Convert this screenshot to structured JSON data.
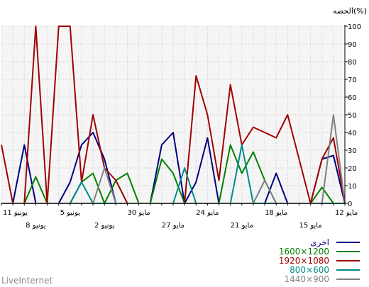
{
  "chart_data": {
    "type": "line",
    "ylabel": "الحصه(%)",
    "ylim": [
      0,
      100
    ],
    "yticks": [
      0,
      10,
      20,
      30,
      40,
      50,
      60,
      70,
      80,
      90,
      100
    ],
    "x": [
      "12 مايو",
      "13 مايو",
      "14 مايو",
      "15 مايو",
      "16 مايو",
      "17 مايو",
      "18 مايو",
      "19 مايو",
      "20 مايو",
      "21 مايو",
      "22 مايو",
      "23 مايو",
      "24 مايو",
      "25 مايو",
      "26 مايو",
      "27 مايو",
      "28 مايو",
      "29 مايو",
      "30 مايو",
      "31 مايو",
      "1 يونيو",
      "2 يونيو",
      "3 يونيو",
      "4 يونيو",
      "5 يونيو",
      "6 يونيو",
      "7 يونيو",
      "8 يونيو",
      "9 يونيو",
      "10 يونيو",
      "11 يونيو"
    ],
    "x_ticks_top": [
      {
        "index": 0,
        "label": "12 مايو"
      },
      {
        "index": 6,
        "label": "18 مايو"
      },
      {
        "index": 12,
        "label": "24 مايو"
      },
      {
        "index": 18,
        "label": "30 مايو"
      },
      {
        "index": 24,
        "label": "5 يونيو"
      },
      {
        "index": 30,
        "label": "11 يونيو"
      }
    ],
    "x_ticks_bottom": [
      {
        "index": 3,
        "label": "15 مايو"
      },
      {
        "index": 9,
        "label": "21 مايو"
      },
      {
        "index": 15,
        "label": "27 مايو"
      },
      {
        "index": 21,
        "label": "2 يونيو"
      },
      {
        "index": 27,
        "label": "8 يونيو"
      }
    ],
    "series": [
      {
        "name": "اخرى",
        "color": "#000080",
        "values": [
          0,
          27,
          25,
          0,
          0,
          0,
          17,
          0,
          0,
          0,
          0,
          0,
          37,
          12,
          0,
          40,
          33,
          0,
          0,
          0,
          0,
          25,
          40,
          33,
          12,
          0,
          0,
          0,
          33,
          0,
          0
        ]
      },
      {
        "name": "1600×1200",
        "color": "#008000",
        "values": [
          0,
          0,
          9,
          0,
          0,
          0,
          0,
          13,
          29,
          17,
          33,
          0,
          0,
          0,
          0,
          17,
          25,
          0,
          0,
          17,
          13,
          0,
          17,
          12,
          0,
          0,
          0,
          15,
          0,
          0,
          0
        ]
      },
      {
        "name": "1920×1080",
        "color": "#a00000",
        "values": [
          0,
          37,
          25,
          0,
          25,
          50,
          37,
          40,
          43,
          33,
          67,
          13,
          50,
          72,
          0,
          0,
          0,
          0,
          0,
          0,
          13,
          20,
          50,
          12,
          100,
          100,
          0,
          100,
          0,
          0,
          33
        ]
      },
      {
        "name": "800×600",
        "color": "#008b8b",
        "values": [
          0,
          0,
          0,
          0,
          0,
          0,
          0,
          0,
          0,
          33,
          0,
          0,
          0,
          0,
          20,
          0,
          0,
          0,
          0,
          0,
          0,
          0,
          0,
          12,
          0,
          0,
          0,
          0,
          0,
          0,
          0
        ]
      },
      {
        "name": "1440×900",
        "color": "#808080",
        "values": [
          0,
          50,
          0,
          0,
          0,
          0,
          0,
          13,
          0,
          0,
          0,
          0,
          0,
          0,
          0,
          0,
          0,
          0,
          0,
          0,
          0,
          20,
          0,
          0,
          0,
          0,
          0,
          0,
          0,
          0,
          0
        ]
      }
    ]
  },
  "branding": {
    "text": "LiveInternet"
  }
}
